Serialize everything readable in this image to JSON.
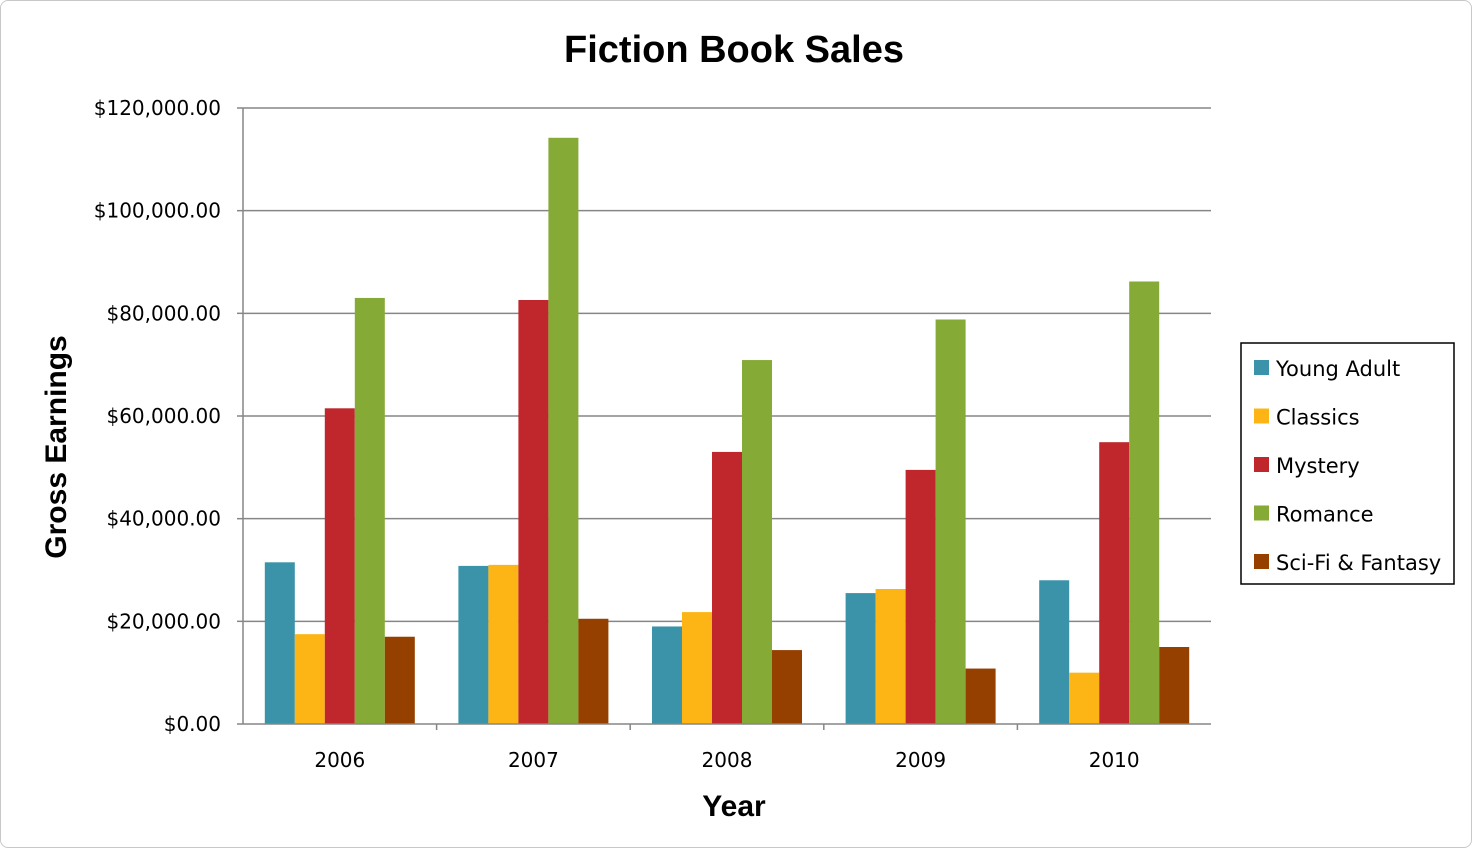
{
  "chart_data": {
    "type": "bar",
    "title": "Fiction Book Sales",
    "xlabel": "Year",
    "ylabel": "Gross Earnings",
    "categories": [
      "2006",
      "2007",
      "2008",
      "2009",
      "2010"
    ],
    "ylim": [
      0,
      120000
    ],
    "yticks": [
      0,
      20000,
      40000,
      60000,
      80000,
      100000,
      120000
    ],
    "ytick_labels": [
      "$0.00",
      "$20,000.00",
      "$40,000.00",
      "$60,000.00",
      "$80,000.00",
      "$100,000.00",
      "$120,000.00"
    ],
    "grid": true,
    "legend_position": "right",
    "series": [
      {
        "name": "Young Adult",
        "color": "#3a93a9",
        "values": [
          31500,
          30800,
          19000,
          25500,
          28000
        ]
      },
      {
        "name": "Classics",
        "color": "#fdb515",
        "values": [
          17500,
          31000,
          21800,
          26300,
          10000
        ]
      },
      {
        "name": "Mystery",
        "color": "#c0272d",
        "values": [
          61500,
          82600,
          53000,
          49500,
          54900
        ]
      },
      {
        "name": "Romance",
        "color": "#86aa36",
        "values": [
          83000,
          114200,
          70900,
          78800,
          86200
        ]
      },
      {
        "name": "Sci-Fi & Fantasy",
        "color": "#964000",
        "values": [
          17000,
          20500,
          14400,
          10800,
          15000
        ]
      }
    ]
  }
}
